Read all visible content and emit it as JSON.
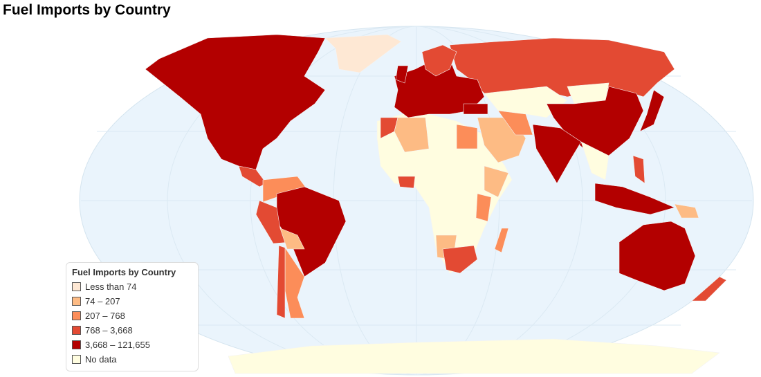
{
  "title": "Fuel Imports by Country",
  "legend": {
    "title": "Fuel Imports by Country",
    "items": [
      {
        "label": "Less than 74",
        "color": "#fee8d4"
      },
      {
        "label": "74 – 207",
        "color": "#fdbb84"
      },
      {
        "label": "207 – 768",
        "color": "#fc8d59"
      },
      {
        "label": "768 – 3,668",
        "color": "#e34a33"
      },
      {
        "label": "3,668 – 121,655",
        "color": "#b30000"
      },
      {
        "label": "No data",
        "color": "#fffde0"
      }
    ]
  },
  "map": {
    "projection": "Robinson",
    "ocean_color": "#eaf4fc"
  }
}
